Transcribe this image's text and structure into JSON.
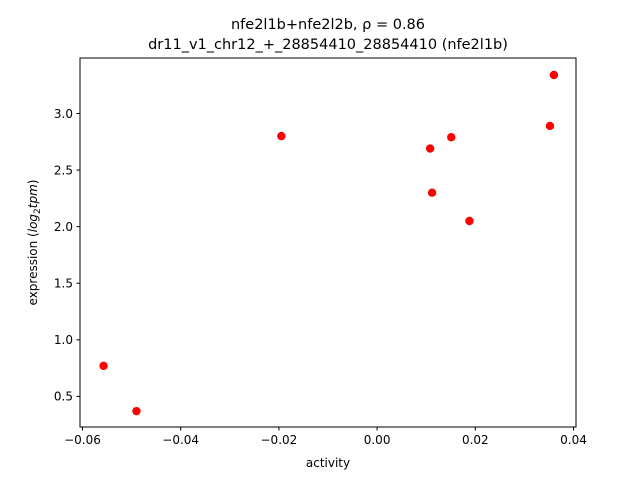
{
  "chart_data": {
    "type": "scatter",
    "title_line1": "nfe2l1b+nfe2l2b, ρ = 0.86",
    "title_line2": "dr11_v1_chr12_+_28854410_28854410 (nfe2l1b)",
    "xlabel": "activity",
    "ylabel_prefix": "expression (",
    "ylabel_log": "log",
    "ylabel_sub": "2",
    "ylabel_tpm": "tpm",
    "ylabel_suffix": ")",
    "xlim": [
      -0.0605,
      0.0405
    ],
    "ylim": [
      0.23,
      3.49
    ],
    "xticks": [
      -0.06,
      -0.04,
      -0.02,
      0.0,
      0.02,
      0.04
    ],
    "xtick_labels": [
      "−0.06",
      "−0.04",
      "−0.02",
      "0.00",
      "0.02",
      "0.04"
    ],
    "yticks": [
      0.5,
      1.0,
      1.5,
      2.0,
      2.5,
      3.0
    ],
    "ytick_labels": [
      "0.5",
      "1.0",
      "1.5",
      "2.0",
      "2.5",
      "3.0"
    ],
    "marker_color": "#ff0000",
    "points": [
      {
        "x": -0.0557,
        "y": 0.77
      },
      {
        "x": -0.049,
        "y": 0.37
      },
      {
        "x": -0.0195,
        "y": 2.8
      },
      {
        "x": 0.0108,
        "y": 2.69
      },
      {
        "x": 0.0112,
        "y": 2.3
      },
      {
        "x": 0.0151,
        "y": 2.79
      },
      {
        "x": 0.0188,
        "y": 2.05
      },
      {
        "x": 0.0352,
        "y": 2.89
      },
      {
        "x": 0.036,
        "y": 3.34
      }
    ]
  }
}
